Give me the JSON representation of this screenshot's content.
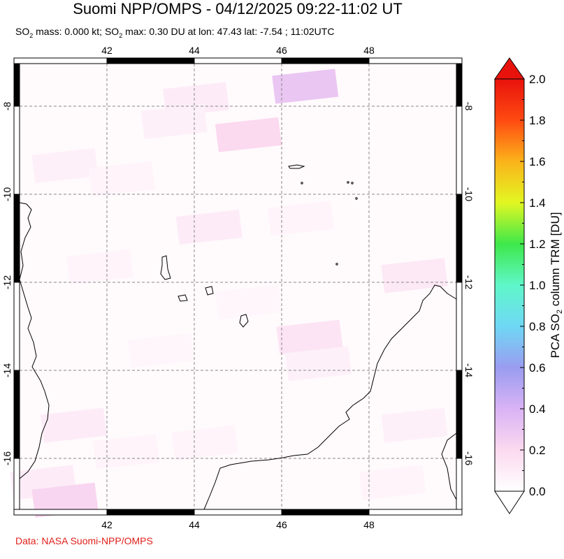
{
  "title": "Suomi NPP/OMPS - 04/12/2025 09:22-11:02 UT",
  "subtitle": {
    "so2_label": "SO",
    "sub": "2",
    "mass_text": " mass: 0.000 kt; ",
    "max_label": "SO",
    "max_text": " max: 0.30 DU at lon: 47.43 lat: -7.54 ; 11:02UTC"
  },
  "credit": "Data: NASA Suomi-NPP/OMPS",
  "chart_data": {
    "type": "heatmap",
    "title": "Suomi NPP/OMPS - 04/12/2025 09:22-11:02 UT",
    "xlim": [
      40,
      50
    ],
    "ylim": [
      -17.2,
      -7
    ],
    "x_ticks": [
      "42",
      "44",
      "46",
      "48"
    ],
    "x_tick_values": [
      42,
      44,
      46,
      48
    ],
    "y_ticks": [
      "-8",
      "-10",
      "-12",
      "-14",
      "-16"
    ],
    "y_tick_values": [
      -8,
      -10,
      -12,
      -14,
      -16
    ],
    "grid": true,
    "so2_mass_kt": 0.0,
    "so2_max_du": 0.3,
    "max_lon": 47.43,
    "max_lat": -7.54,
    "colorbar": {
      "label": "PCA SO2 column TRM [DU]",
      "label_parts": [
        "PCA SO",
        "2",
        " column TRM [DU]"
      ],
      "range": [
        0.0,
        2.0
      ],
      "ticks": [
        "0.0",
        "0.2",
        "0.4",
        "0.6",
        "0.8",
        "1.0",
        "1.2",
        "1.4",
        "1.6",
        "1.8",
        "2.0"
      ],
      "colors": [
        "#ffffff",
        "#fbd9ef",
        "#d9b3f5",
        "#9a9cf0",
        "#6fd8f5",
        "#5ff7c9",
        "#3ee84a",
        "#e2f722",
        "#fbb31a",
        "#ff4a12",
        "#e8120c"
      ],
      "over_color": "#e8120c",
      "under_color": "#ffffff"
    },
    "cells": [
      {
        "lon": 46.5,
        "lat": -7.5,
        "value": 0.3
      },
      {
        "lon": 45.2,
        "lat": -8.6,
        "value": 0.2
      },
      {
        "lon": 44.0,
        "lat": -7.8,
        "value": 0.1
      },
      {
        "lon": 43.5,
        "lat": -8.3,
        "value": 0.08
      },
      {
        "lon": 41.0,
        "lat": -9.3,
        "value": 0.08
      },
      {
        "lon": 42.3,
        "lat": -9.6,
        "value": 0.06
      },
      {
        "lon": 44.3,
        "lat": -10.7,
        "value": 0.1
      },
      {
        "lon": 46.4,
        "lat": -10.5,
        "value": 0.06
      },
      {
        "lon": 49.0,
        "lat": -11.8,
        "value": 0.12
      },
      {
        "lon": 41.8,
        "lat": -11.6,
        "value": 0.06
      },
      {
        "lon": 46.6,
        "lat": -13.2,
        "value": 0.14
      },
      {
        "lon": 46.8,
        "lat": -13.8,
        "value": 0.08
      },
      {
        "lon": 41.2,
        "lat": -15.2,
        "value": 0.1
      },
      {
        "lon": 42.4,
        "lat": -15.8,
        "value": 0.06
      },
      {
        "lon": 40.5,
        "lat": -16.5,
        "value": 0.1
      },
      {
        "lon": 41.0,
        "lat": -16.9,
        "value": 0.22
      },
      {
        "lon": 44.2,
        "lat": -15.6,
        "value": 0.06
      },
      {
        "lon": 49.0,
        "lat": -15.2,
        "value": 0.08
      },
      {
        "lon": 48.5,
        "lat": -16.5,
        "value": 0.06
      },
      {
        "lon": 43.2,
        "lat": -13.5,
        "value": 0.05
      },
      {
        "lon": 45.2,
        "lat": -12.4,
        "value": 0.05
      }
    ]
  }
}
